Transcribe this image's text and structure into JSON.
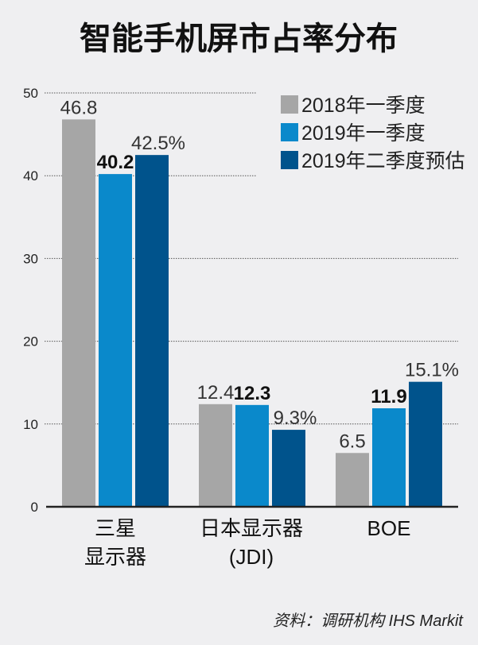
{
  "chart_data": {
    "type": "bar",
    "title": "智能手机屏市占率分布",
    "categories": [
      [
        "三星",
        "显示器"
      ],
      [
        "日本显示器",
        "(JDI)"
      ],
      [
        "BOE"
      ]
    ],
    "series": [
      {
        "name": "2018年一季度",
        "color": "#a6a6a6",
        "values": [
          46.8,
          12.4,
          6.5
        ],
        "labels": [
          "46.8",
          "12.4",
          "6.5"
        ],
        "bold": false
      },
      {
        "name": "2019年一季度",
        "color": "#0a89cb",
        "values": [
          40.2,
          12.3,
          11.9
        ],
        "labels": [
          "40.2",
          "12.3",
          "11.9"
        ],
        "bold": true
      },
      {
        "name": "2019年二季度预估",
        "color": "#00538c",
        "values": [
          42.5,
          9.3,
          15.1
        ],
        "labels": [
          "42.5%",
          "9.3%",
          "15.1%"
        ],
        "bold": false
      }
    ],
    "yticks": [
      "0",
      "10",
      "20",
      "30",
      "40",
      "50"
    ],
    "ylim": [
      0,
      50
    ],
    "grid": true,
    "legend": "top-right",
    "source": "资料：调研机构 IHS Markit"
  }
}
